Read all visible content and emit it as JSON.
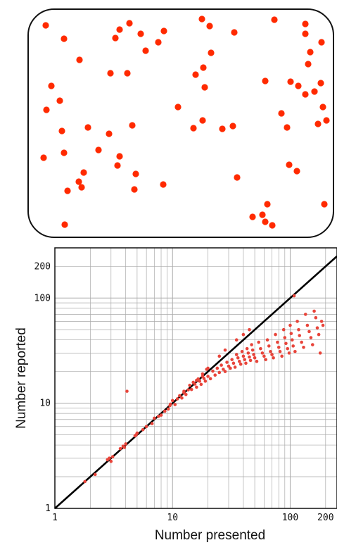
{
  "colors": {
    "dot": "#ff2a00",
    "point": "#e8443a",
    "identity_line": "#000000",
    "grid": "#aaaaaa",
    "frame": "#111111"
  },
  "stimulus_panel": {
    "dot_count": 70,
    "dots": [
      [
        65,
        36
      ],
      [
        91,
        55
      ],
      [
        170,
        42
      ],
      [
        164,
        54
      ],
      [
        200,
        48
      ],
      [
        233,
        44
      ],
      [
        287,
        27
      ],
      [
        333,
        46
      ],
      [
        390,
        28
      ],
      [
        434,
        34
      ],
      [
        434,
        48
      ],
      [
        457,
        60
      ],
      [
        207,
        72
      ],
      [
        225,
        60
      ],
      [
        113,
        85
      ],
      [
        441,
        74
      ],
      [
        438,
        91
      ],
      [
        289,
        96
      ],
      [
        278,
        106
      ],
      [
        157,
        104
      ],
      [
        181,
        104
      ],
      [
        73,
        122
      ],
      [
        85,
        143
      ],
      [
        66,
        156
      ],
      [
        291,
        124
      ],
      [
        253,
        152
      ],
      [
        377,
        115
      ],
      [
        413,
        116
      ],
      [
        424,
        122
      ],
      [
        456,
        118
      ],
      [
        434,
        134
      ],
      [
        447,
        130
      ],
      [
        459,
        152
      ],
      [
        400,
        161
      ],
      [
        464,
        171
      ],
      [
        452,
        176
      ],
      [
        288,
        171
      ],
      [
        275,
        182
      ],
      [
        316,
        183
      ],
      [
        331,
        179
      ],
      [
        408,
        181
      ],
      [
        88,
        186
      ],
      [
        125,
        181
      ],
      [
        155,
        190
      ],
      [
        188,
        178
      ],
      [
        140,
        213
      ],
      [
        91,
        217
      ],
      [
        62,
        224
      ],
      [
        170,
        222
      ],
      [
        167,
        235
      ],
      [
        119,
        245
      ],
      [
        193,
        247
      ],
      [
        112,
        258
      ],
      [
        116,
        266
      ],
      [
        96,
        271
      ],
      [
        191,
        269
      ],
      [
        232,
        262
      ],
      [
        337,
        252
      ],
      [
        411,
        234
      ],
      [
        422,
        243
      ],
      [
        461,
        290
      ],
      [
        359,
        308
      ],
      [
        380,
        290
      ],
      [
        377,
        315
      ],
      [
        387,
        320
      ],
      [
        92,
        319
      ],
      [
        184,
        33
      ],
      [
        298,
        37
      ],
      [
        373,
        305
      ],
      [
        300,
        75
      ]
    ]
  },
  "chart_data": {
    "type": "scatter",
    "title": "",
    "xlabel": "Number presented",
    "ylabel": "Number reported",
    "xscale": "log",
    "yscale": "log",
    "xlim": [
      1,
      250
    ],
    "ylim": [
      1,
      300
    ],
    "x_tick_labels": [
      {
        "value": 1,
        "label": "1"
      },
      {
        "value": 10,
        "label": "10"
      },
      {
        "value": 100,
        "label": "100"
      },
      {
        "value": 200,
        "label": "200"
      }
    ],
    "y_tick_labels": [
      {
        "value": 1,
        "label": "1"
      },
      {
        "value": 10,
        "label": "10"
      },
      {
        "value": 100,
        "label": "100"
      },
      {
        "value": 200,
        "label": "200"
      }
    ],
    "grid": true,
    "reference_line": {
      "type": "identity",
      "from": 1,
      "to": 250
    },
    "series": [
      {
        "points": [
          [
            1.8,
            1.8
          ],
          [
            2.2,
            2.1
          ],
          [
            2.8,
            2.9
          ],
          [
            2.9,
            3.0
          ],
          [
            3.0,
            2.8
          ],
          [
            3.1,
            3.1
          ],
          [
            3.6,
            3.7
          ],
          [
            3.8,
            3.9
          ],
          [
            4.0,
            4.1
          ],
          [
            3.9,
            3.8
          ],
          [
            4.1,
            13
          ],
          [
            4.8,
            4.9
          ],
          [
            4.9,
            5.0
          ],
          [
            5.0,
            5.2
          ],
          [
            5.6,
            5.6
          ],
          [
            6.0,
            6.0
          ],
          [
            6.7,
            6.4
          ],
          [
            7.0,
            7.2
          ],
          [
            7.6,
            7.5
          ],
          [
            8.0,
            7.7
          ],
          [
            8.6,
            8.4
          ],
          [
            9.2,
            8.8
          ],
          [
            9.6,
            9.8
          ],
          [
            10.0,
            10.6
          ],
          [
            10.5,
            9.7
          ],
          [
            11.0,
            11.0
          ],
          [
            11.5,
            11.8
          ],
          [
            12.0,
            11.2
          ],
          [
            12.5,
            12.6
          ],
          [
            13.0,
            12.1
          ],
          [
            13.6,
            13.4
          ],
          [
            14.0,
            14.8
          ],
          [
            14.5,
            13.5
          ],
          [
            15.0,
            15.8
          ],
          [
            15.5,
            15.2
          ],
          [
            16.0,
            14.2
          ],
          [
            16.5,
            17.0
          ],
          [
            17.0,
            16.2
          ],
          [
            17.5,
            15.1
          ],
          [
            18.0,
            18.0
          ],
          [
            18.5,
            17.2
          ],
          [
            19.0,
            16.2
          ],
          [
            19.5,
            21.0
          ],
          [
            20.0,
            18.0
          ],
          [
            21.0,
            17.1
          ],
          [
            22.0,
            20.2
          ],
          [
            23.0,
            18.5
          ],
          [
            24.0,
            21.5
          ],
          [
            25.0,
            19.6
          ],
          [
            26.0,
            23.0
          ],
          [
            27.0,
            21.0
          ],
          [
            28.0,
            20.0
          ],
          [
            29.0,
            24.5
          ],
          [
            30.0,
            22.5
          ],
          [
            31.0,
            21.5
          ],
          [
            32.0,
            26.0
          ],
          [
            33.0,
            24.0
          ],
          [
            34.0,
            22.0
          ],
          [
            35.0,
            29.0
          ],
          [
            36.0,
            27.0
          ],
          [
            37.0,
            25.0
          ],
          [
            38.0,
            23.5
          ],
          [
            39.0,
            31.0
          ],
          [
            40.0,
            28.0
          ],
          [
            41.0,
            26.0
          ],
          [
            42.0,
            24.0
          ],
          [
            43.0,
            33.0
          ],
          [
            44.0,
            30.0
          ],
          [
            45.0,
            27.5
          ],
          [
            46.0,
            25.5
          ],
          [
            47.0,
            36.0
          ],
          [
            48.0,
            32.0
          ],
          [
            49.0,
            29.0
          ],
          [
            50.0,
            27.0
          ],
          [
            52.0,
            25.0
          ],
          [
            54.0,
            38.0
          ],
          [
            56.0,
            33.0
          ],
          [
            58.0,
            30.0
          ],
          [
            60.0,
            28.0
          ],
          [
            62.0,
            26.0
          ],
          [
            64.0,
            40.0
          ],
          [
            66.0,
            35.0
          ],
          [
            68.0,
            31.0
          ],
          [
            70.0,
            29.0
          ],
          [
            72.0,
            27.0
          ],
          [
            75.0,
            45.0
          ],
          [
            78.0,
            38.0
          ],
          [
            80.0,
            34.0
          ],
          [
            82.0,
            31.0
          ],
          [
            85.0,
            28.0
          ],
          [
            88.0,
            50.0
          ],
          [
            90.0,
            42.0
          ],
          [
            92.0,
            37.0
          ],
          [
            95.0,
            33.0
          ],
          [
            98.0,
            30.0
          ],
          [
            100.0,
            55.0
          ],
          [
            102.0,
            46.0
          ],
          [
            104.0,
            40.0
          ],
          [
            106.0,
            35.0
          ],
          [
            108.0,
            105.0
          ],
          [
            110.0,
            31.0
          ],
          [
            115.0,
            60.0
          ],
          [
            118.0,
            50.0
          ],
          [
            120.0,
            44.0
          ],
          [
            125.0,
            38.0
          ],
          [
            130.0,
            34.0
          ],
          [
            135.0,
            70.0
          ],
          [
            140.0,
            55.0
          ],
          [
            145.0,
            48.0
          ],
          [
            150.0,
            42.0
          ],
          [
            155.0,
            36.0
          ],
          [
            160.0,
            75.0
          ],
          [
            165.0,
            65.0
          ],
          [
            170.0,
            52.0
          ],
          [
            175.0,
            45.0
          ],
          [
            180.0,
            30.0
          ],
          [
            185.0,
            60.0
          ],
          [
            190.0,
            55.0
          ],
          [
            25.0,
            28.0
          ],
          [
            28.0,
            32.0
          ],
          [
            35.0,
            40.0
          ],
          [
            40.0,
            45.0
          ],
          [
            45.0,
            50.0
          ],
          [
            20.0,
            21.5
          ],
          [
            18.0,
            19.0
          ],
          [
            16.0,
            16.5
          ],
          [
            12.5,
            13.0
          ],
          [
            9.5,
            9.5
          ]
        ]
      }
    ]
  }
}
